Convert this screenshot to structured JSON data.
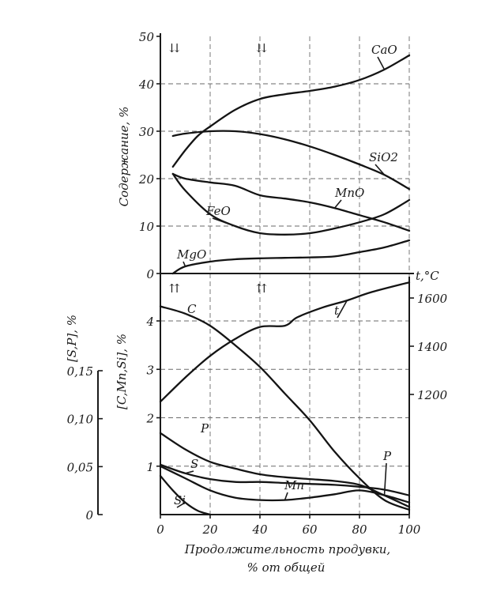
{
  "chart_data": [
    {
      "type": "line",
      "ylabel": "Содержание, %",
      "xlim": [
        0,
        100
      ],
      "ylim": [
        0,
        50
      ],
      "y_ticks": [
        "0",
        "10",
        "20",
        "30",
        "40",
        "50"
      ],
      "grid": true,
      "series": [
        {
          "name": "CaO",
          "x": [
            5,
            10,
            15,
            20,
            30,
            40,
            50,
            60,
            70,
            80,
            90,
            100
          ],
          "values": [
            22.5,
            26,
            29,
            31,
            34.5,
            36.8,
            37.8,
            38.5,
            39.4,
            40.8,
            43,
            46
          ]
        },
        {
          "name": "SiO2",
          "x": [
            5,
            10,
            20,
            30,
            40,
            50,
            60,
            70,
            80,
            90,
            100
          ],
          "values": [
            29,
            29.5,
            30,
            30,
            29.4,
            28.3,
            26.8,
            25,
            23,
            20.8,
            17.8
          ]
        },
        {
          "name": "MnO",
          "x": [
            5,
            10,
            20,
            30,
            40,
            50,
            60,
            70,
            80,
            90,
            100
          ],
          "values": [
            21,
            20,
            19.2,
            18.5,
            16.5,
            15.8,
            15,
            13.8,
            12.3,
            10.8,
            9
          ]
        },
        {
          "name": "FeO",
          "x": [
            5,
            10,
            20,
            30,
            40,
            50,
            60,
            70,
            80,
            90,
            100
          ],
          "values": [
            21,
            17.5,
            12.5,
            10,
            8.5,
            8.2,
            8.5,
            9.5,
            10.8,
            12.5,
            15.5
          ]
        },
        {
          "name": "MgO",
          "x": [
            5,
            10,
            20,
            30,
            40,
            50,
            60,
            70,
            80,
            90,
            100
          ],
          "values": [
            0,
            1.5,
            2.5,
            3,
            3.2,
            3.3,
            3.4,
            3.6,
            4.5,
            5.5,
            7
          ]
        }
      ],
      "markers": [
        {
          "text": "⇊",
          "x": 5
        },
        {
          "text": "⇊",
          "x": 40
        }
      ]
    },
    {
      "type": "line",
      "xlabel": "Продолжительность продувки, % от общей",
      "xlim": [
        0,
        100
      ],
      "x_ticks": [
        "0",
        "20",
        "40",
        "60",
        "80",
        "100"
      ],
      "grid": true,
      "axes": {
        "sp": {
          "label": "[S,P], %",
          "ticks": [
            "0",
            "0,05",
            "0,10",
            "0,15"
          ],
          "range": [
            0,
            0.15
          ]
        },
        "cmnsi": {
          "label": "[C,Mn,Si], %",
          "ticks": [
            "0",
            "1",
            "2",
            "3",
            "4"
          ],
          "range": [
            0,
            4
          ]
        },
        "t": {
          "label": "t,°C",
          "ticks": [
            "1200",
            "1400",
            "1600"
          ],
          "range": [
            1000,
            1700
          ]
        }
      },
      "series": [
        {
          "name": "C",
          "axis": "cmnsi",
          "x": [
            0,
            10,
            20,
            30,
            40,
            50,
            60,
            70,
            80,
            90,
            100
          ],
          "values": [
            4.3,
            4.15,
            3.9,
            3.5,
            3.05,
            2.5,
            1.95,
            1.3,
            0.75,
            0.3,
            0.1
          ]
        },
        {
          "name": "t",
          "axis": "t",
          "x": [
            0,
            10,
            20,
            30,
            40,
            50,
            55,
            65,
            75,
            85,
            100
          ],
          "values": [
            1170,
            1270,
            1360,
            1430,
            1480,
            1485,
            1520,
            1560,
            1590,
            1625,
            1665
          ]
        },
        {
          "name": "P",
          "axis": "sp",
          "x": [
            0,
            10,
            20,
            30,
            40,
            50,
            60,
            70,
            80,
            90,
            100
          ],
          "values": [
            0.085,
            0.068,
            0.055,
            0.048,
            0.042,
            0.039,
            0.037,
            0.035,
            0.031,
            0.02,
            0.008
          ]
        },
        {
          "name": "S",
          "axis": "sp",
          "x": [
            0,
            10,
            20,
            30,
            40,
            50,
            60,
            70,
            80,
            90,
            100
          ],
          "values": [
            0.052,
            0.043,
            0.037,
            0.034,
            0.034,
            0.033,
            0.032,
            0.031,
            0.029,
            0.026,
            0.02
          ]
        },
        {
          "name": "Mn",
          "axis": "cmnsi",
          "x": [
            0,
            10,
            20,
            30,
            40,
            50,
            60,
            70,
            80,
            90,
            100
          ],
          "values": [
            1.0,
            0.75,
            0.5,
            0.35,
            0.3,
            0.3,
            0.35,
            0.42,
            0.5,
            0.4,
            0.25
          ]
        },
        {
          "name": "Si",
          "axis": "cmnsi",
          "x": [
            0,
            5,
            10,
            15,
            20
          ],
          "values": [
            0.8,
            0.5,
            0.25,
            0.08,
            0
          ]
        }
      ],
      "markers": [
        {
          "text": "⇈",
          "x": 5
        },
        {
          "text": "⇈",
          "x": 40
        }
      ]
    }
  ]
}
